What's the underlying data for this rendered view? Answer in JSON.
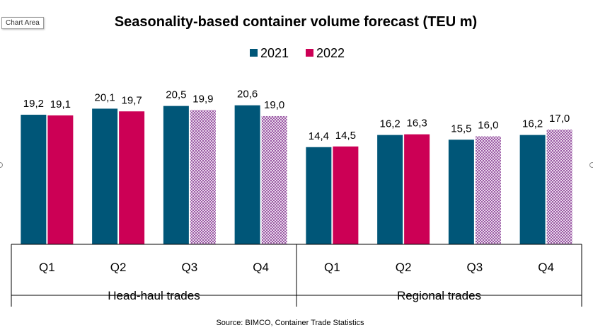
{
  "tooltip": "Chart Area",
  "chart_data": {
    "type": "bar",
    "title": "Seasonality-based container volume forecast (TEU m)",
    "source": "Source: BIMCO, Container Trade Statistics",
    "legend_position": "top-center",
    "groups": [
      {
        "label": "Head-haul trades",
        "categories": [
          "Q1",
          "Q2",
          "Q3",
          "Q4"
        ]
      },
      {
        "label": "Regional trades",
        "categories": [
          "Q1",
          "Q2",
          "Q3",
          "Q4"
        ]
      }
    ],
    "categories": [
      "Q1",
      "Q2",
      "Q3",
      "Q4",
      "Q1",
      "Q2",
      "Q3",
      "Q4"
    ],
    "series": [
      {
        "name": "2021",
        "color": "#005678",
        "values": [
          19.2,
          20.1,
          20.5,
          20.6,
          14.4,
          16.2,
          15.5,
          16.2
        ],
        "labels": [
          "19,2",
          "20,1",
          "20,5",
          "20,6",
          "14,4",
          "16,2",
          "15,5",
          "16,2"
        ],
        "forecast": [
          false,
          false,
          false,
          false,
          false,
          false,
          false,
          false
        ]
      },
      {
        "name": "2022",
        "color": "#cc0055",
        "values": [
          19.1,
          19.7,
          19.9,
          19.0,
          14.5,
          16.3,
          16.0,
          17.0
        ],
        "labels": [
          "19,1",
          "19,7",
          "19,9",
          "19,0",
          "14,5",
          "16,3",
          "16,0",
          "17,0"
        ],
        "forecast": [
          false,
          false,
          true,
          true,
          false,
          false,
          true,
          true
        ]
      }
    ],
    "ylim": [
      0,
      22
    ],
    "grid": false
  }
}
